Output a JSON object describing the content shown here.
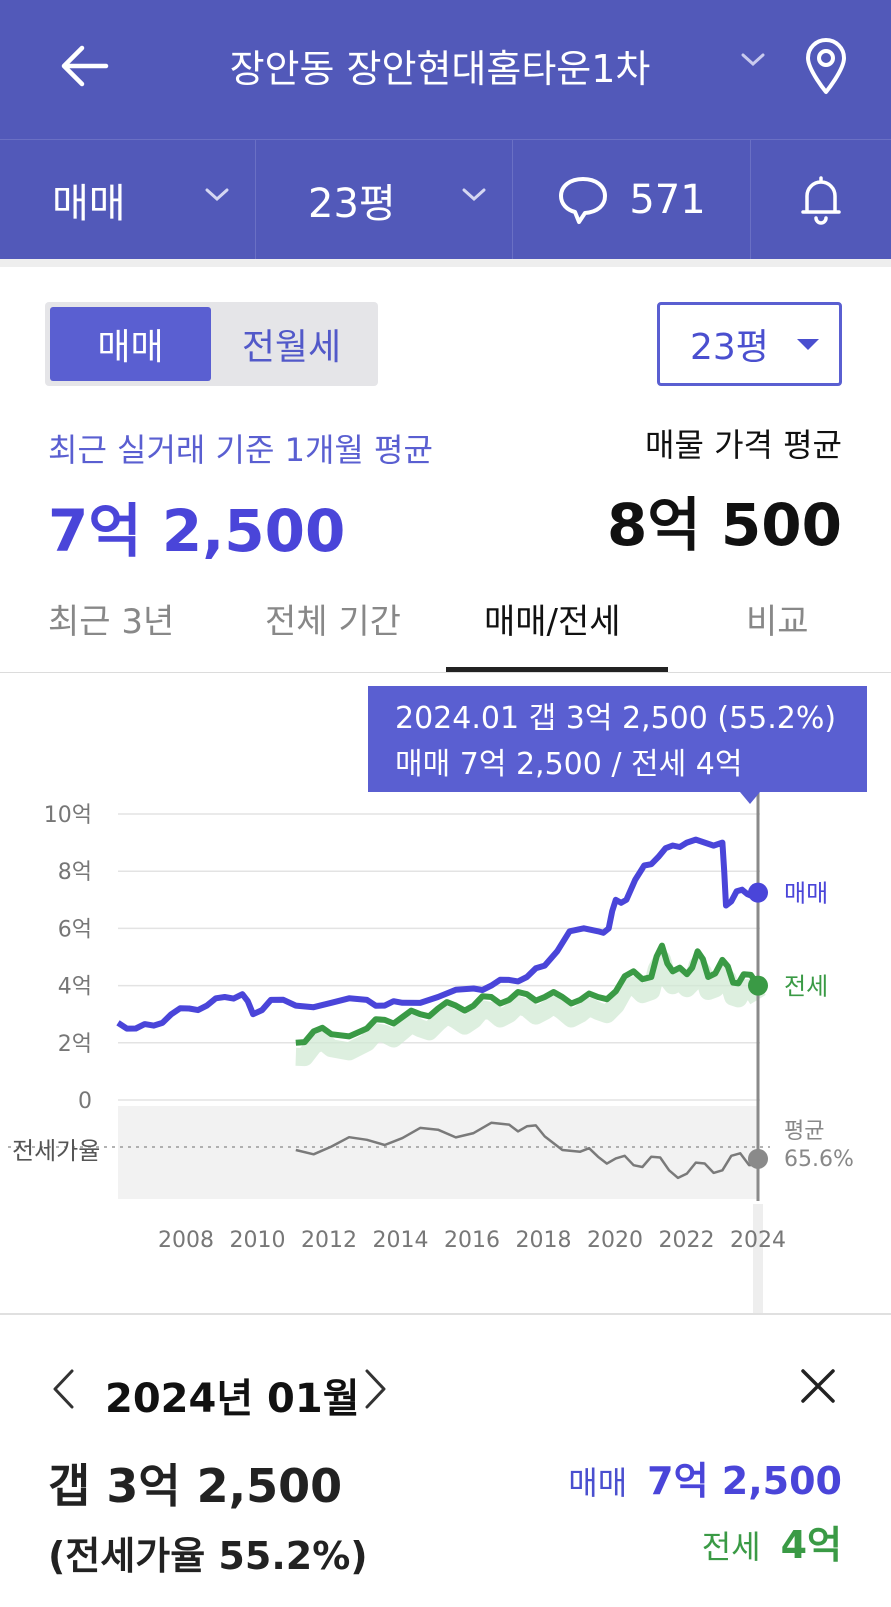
{
  "header": {
    "title": "장안동 장안현대홈타운1차",
    "back_icon": "arrow-left-icon",
    "location_icon": "map-pin-icon"
  },
  "subbar": {
    "trade_type": "매매",
    "size": "23평",
    "comment_count": "571",
    "bell_icon": "bell-icon"
  },
  "segment": {
    "options": [
      "매매",
      "전월세"
    ],
    "selected": "매매"
  },
  "size_select": {
    "value": "23평"
  },
  "summary": {
    "recent_label": "최근 실거래 기준 1개월 평균",
    "recent_value": "7억 2,500",
    "listing_label": "매물 가격 평균",
    "listing_value": "8억 500"
  },
  "tabs": [
    "최근 3년",
    "전체 기간",
    "매매/전세",
    "비교"
  ],
  "active_tab": "매매/전세",
  "tooltip": {
    "line1": "2024.01  갭 3억 2,500 (55.2%)",
    "line2": "매매 7억 2,500 / 전세 4억"
  },
  "chart_data": {
    "type": "line",
    "y_ticks": [
      "10억",
      "8억",
      "6억",
      "4억",
      "2억",
      "0"
    ],
    "ylim": [
      0,
      10
    ],
    "x_ticks": [
      "2008",
      "2010",
      "2012",
      "2014",
      "2016",
      "2018",
      "2020",
      "2022",
      "2024"
    ],
    "ratio_label": "전세가율",
    "ratio_avg_label": "평균",
    "ratio_avg_value": "65.6%",
    "series": [
      {
        "name": "매매",
        "color": "#4a45d9",
        "points": [
          [
            2006.0,
            2.7
          ],
          [
            2006.5,
            2.5
          ],
          [
            2007.0,
            2.6
          ],
          [
            2007.5,
            3.0
          ],
          [
            2008.0,
            3.2
          ],
          [
            2008.5,
            3.3
          ],
          [
            2009.0,
            3.6
          ],
          [
            2009.5,
            3.7
          ],
          [
            2009.8,
            3.0
          ],
          [
            2010.3,
            3.5
          ],
          [
            2011.0,
            3.3
          ],
          [
            2012.0,
            3.4
          ],
          [
            2013.0,
            3.5
          ],
          [
            2013.5,
            3.3
          ],
          [
            2014.0,
            3.4
          ],
          [
            2015.0,
            3.6
          ],
          [
            2016.0,
            3.9
          ],
          [
            2016.5,
            4.0
          ],
          [
            2017.0,
            4.2
          ],
          [
            2017.5,
            4.3
          ],
          [
            2018.0,
            4.7
          ],
          [
            2018.7,
            5.9
          ],
          [
            2019.5,
            5.9
          ],
          [
            2019.8,
            6.0
          ],
          [
            2020.0,
            7.0
          ],
          [
            2020.3,
            7.0
          ],
          [
            2020.8,
            8.2
          ],
          [
            2021.2,
            8.5
          ],
          [
            2021.6,
            8.9
          ],
          [
            2022.0,
            9.0
          ],
          [
            2022.5,
            9.0
          ],
          [
            2023.0,
            9.0
          ],
          [
            2023.1,
            6.8
          ],
          [
            2023.4,
            7.3
          ],
          [
            2023.7,
            7.2
          ],
          [
            2024.0,
            7.25
          ]
        ]
      },
      {
        "name": "전세",
        "color": "#3a9a45",
        "points": [
          [
            2011.0,
            2.0
          ],
          [
            2011.5,
            2.4
          ],
          [
            2012.0,
            2.3
          ],
          [
            2013.0,
            2.5
          ],
          [
            2013.5,
            2.8
          ],
          [
            2014.0,
            2.9
          ],
          [
            2014.5,
            3.0
          ],
          [
            2015.0,
            3.2
          ],
          [
            2015.5,
            3.3
          ],
          [
            2016.0,
            3.3
          ],
          [
            2016.5,
            3.6
          ],
          [
            2017.0,
            3.5
          ],
          [
            2017.5,
            3.7
          ],
          [
            2018.0,
            3.6
          ],
          [
            2018.5,
            3.6
          ],
          [
            2019.0,
            3.5
          ],
          [
            2019.5,
            3.6
          ],
          [
            2020.0,
            3.8
          ],
          [
            2020.5,
            4.5
          ],
          [
            2021.0,
            4.3
          ],
          [
            2021.3,
            5.4
          ],
          [
            2021.6,
            4.5
          ],
          [
            2022.0,
            4.4
          ],
          [
            2022.3,
            5.2
          ],
          [
            2022.6,
            4.3
          ],
          [
            2023.0,
            4.9
          ],
          [
            2023.3,
            4.1
          ],
          [
            2023.6,
            4.4
          ],
          [
            2024.0,
            4.0
          ]
        ]
      },
      {
        "name": "전세가율",
        "color": "#7a7a7a",
        "points": [
          [
            2011.0,
            64
          ],
          [
            2012.0,
            66
          ],
          [
            2013.0,
            70
          ],
          [
            2014.0,
            71
          ],
          [
            2015.0,
            76
          ],
          [
            2016.0,
            74
          ],
          [
            2017.0,
            79
          ],
          [
            2017.5,
            78
          ],
          [
            2018.0,
            72
          ],
          [
            2019.0,
            63
          ],
          [
            2019.5,
            60
          ],
          [
            2020.0,
            59
          ],
          [
            2020.5,
            55
          ],
          [
            2021.0,
            60
          ],
          [
            2021.5,
            52
          ],
          [
            2022.0,
            50
          ],
          [
            2022.5,
            56
          ],
          [
            2023.0,
            52
          ],
          [
            2023.5,
            62
          ],
          [
            2024.0,
            55.2
          ]
        ]
      }
    ],
    "selected": {
      "x": "2024.01",
      "sale": 7.25,
      "jeonse": 4.0,
      "ratio": 55.2
    }
  },
  "detail": {
    "month": "2024년 01월",
    "gap": "갭 3억 2,500",
    "ratio": "(전세가율 55.2%)",
    "sale_label": "매매",
    "sale_value": "7억 2,500",
    "jeonse_label": "전세",
    "jeonse_value": "4억"
  }
}
